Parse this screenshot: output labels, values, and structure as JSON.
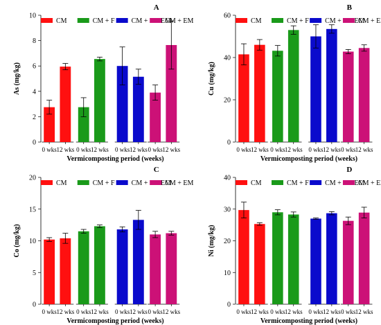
{
  "figure": {
    "legend_labels": [
      "CM",
      "CM + F",
      "CM + F + EM",
      "CM + EM"
    ],
    "colors": [
      "#ff1010",
      "#1a9a1a",
      "#0a0acc",
      "#cc1177"
    ],
    "x_tick_labels": [
      "0 wks",
      "12 wks"
    ]
  },
  "chart_data": [
    {
      "type": "bar",
      "panel_label": "A",
      "ylabel": "As (mg/kg)",
      "xlabel": "Vermicomposting period (weeks)",
      "ylim": [
        0,
        10
      ],
      "yticks": [
        0,
        2,
        4,
        6,
        8,
        10
      ],
      "categories": [
        "0 wks",
        "12 wks"
      ],
      "legend_position": "top",
      "series": [
        {
          "name": "CM",
          "values": [
            2.75,
            5.95
          ],
          "errors": [
            0.55,
            0.25
          ]
        },
        {
          "name": "CM + F",
          "values": [
            2.75,
            6.55
          ],
          "errors": [
            0.75,
            0.15
          ]
        },
        {
          "name": "CM + F + EM",
          "values": [
            6.0,
            5.15
          ],
          "errors": [
            1.5,
            0.6
          ]
        },
        {
          "name": "CM + EM",
          "values": [
            3.9,
            7.65
          ],
          "errors": [
            0.6,
            1.9
          ]
        }
      ]
    },
    {
      "type": "bar",
      "panel_label": "B",
      "ylabel": "Cu (mg/kg)",
      "xlabel": "Vermicomposting period (weeks)",
      "ylim": [
        0,
        60
      ],
      "yticks": [
        0,
        20,
        40,
        60
      ],
      "categories": [
        "0 wks",
        "12 wks"
      ],
      "legend_position": "top",
      "series": [
        {
          "name": "CM",
          "values": [
            41.5,
            46.0
          ],
          "errors": [
            5.0,
            2.5
          ]
        },
        {
          "name": "CM + F",
          "values": [
            43.2,
            53.0
          ],
          "errors": [
            2.5,
            2.0
          ]
        },
        {
          "name": "CM + F + EM",
          "values": [
            50.0,
            53.5
          ],
          "errors": [
            5.5,
            2.0
          ]
        },
        {
          "name": "CM + EM",
          "values": [
            42.8,
            44.5
          ],
          "errors": [
            1.0,
            1.5
          ]
        }
      ]
    },
    {
      "type": "bar",
      "panel_label": "C",
      "ylabel": "Co (mg/kg)",
      "xlabel": "Vermicomposting period (weeks)",
      "ylim": [
        0,
        20
      ],
      "yticks": [
        0,
        5,
        10,
        15,
        20
      ],
      "categories": [
        "0 wks",
        "12 wks"
      ],
      "legend_position": "top",
      "series": [
        {
          "name": "CM",
          "values": [
            10.2,
            10.4
          ],
          "errors": [
            0.3,
            0.8
          ]
        },
        {
          "name": "CM + F",
          "values": [
            11.5,
            12.3
          ],
          "errors": [
            0.3,
            0.2
          ]
        },
        {
          "name": "CM + F + EM",
          "values": [
            11.8,
            13.3
          ],
          "errors": [
            0.4,
            1.5
          ]
        },
        {
          "name": "CM + EM",
          "values": [
            11.0,
            11.2
          ],
          "errors": [
            0.5,
            0.3
          ]
        }
      ]
    },
    {
      "type": "bar",
      "panel_label": "D",
      "ylabel": "Ni (mg/kg)",
      "xlabel": "Vermicomposting period (weeks)",
      "ylim": [
        0,
        40
      ],
      "yticks": [
        0,
        10,
        20,
        30,
        40
      ],
      "categories": [
        "0 wks",
        "12 wks"
      ],
      "legend_position": "top",
      "series": [
        {
          "name": "CM",
          "values": [
            29.7,
            25.3
          ],
          "errors": [
            2.5,
            0.4
          ]
        },
        {
          "name": "CM + F",
          "values": [
            29.0,
            28.3
          ],
          "errors": [
            0.8,
            0.8
          ]
        },
        {
          "name": "CM + F + EM",
          "values": [
            27.0,
            28.7
          ],
          "errors": [
            0.2,
            0.5
          ]
        },
        {
          "name": "CM + EM",
          "values": [
            26.3,
            28.9
          ],
          "errors": [
            1.2,
            1.7
          ]
        }
      ]
    }
  ]
}
